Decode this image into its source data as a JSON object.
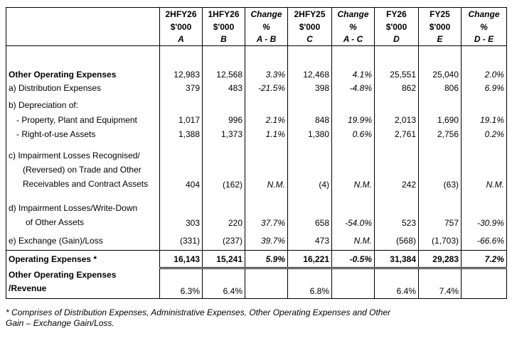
{
  "columns": [
    {
      "period": "2HFY26",
      "unit": "$'000",
      "code": "A",
      "italic_header": false
    },
    {
      "period": "1HFY26",
      "unit": "$'000",
      "code": "B",
      "italic_header": false
    },
    {
      "period": "Change",
      "unit": "%",
      "code": "A - B",
      "italic_header": true
    },
    {
      "period": "2HFY25",
      "unit": "$'000",
      "code": "C",
      "italic_header": false
    },
    {
      "period": "Change",
      "unit": "%",
      "code": "A - C",
      "italic_header": true
    },
    {
      "period": "FY26",
      "unit": "$'000",
      "code": "D",
      "italic_header": false
    },
    {
      "period": "FY25",
      "unit": "$'000",
      "code": "E",
      "italic_header": false
    },
    {
      "period": "Change",
      "unit": "%",
      "code": "D - E",
      "italic_header": true
    }
  ],
  "rows": {
    "other_opex": {
      "label": "Other Operating Expenses",
      "values": [
        "12,983",
        "12,568",
        "3.3%",
        "12,468",
        "4.1%",
        "25,551",
        "25,040",
        "2.0%"
      ]
    },
    "distribution": {
      "label": "a) Distribution Expenses",
      "values": [
        "379",
        "483",
        "-21.5%",
        "398",
        "-4.8%",
        "862",
        "806",
        "6.9%"
      ]
    },
    "depreciation_header": {
      "label": "b) Depreciation of:"
    },
    "ppe": {
      "label": "- Property, Plant and Equipment",
      "values": [
        "1,017",
        "996",
        "2.1%",
        "848",
        "19.9%",
        "2,013",
        "1,690",
        "19.1%"
      ]
    },
    "rou": {
      "label": "- Right-of-use Assets",
      "values": [
        "1,388",
        "1,373",
        "1.1%",
        "1,380",
        "0.6%",
        "2,761",
        "2,756",
        "0.2%"
      ]
    },
    "impairment_recv": {
      "label_lines": [
        "c) Impairment Losses Recognised/",
        "(Reversed) on Trade and Other",
        "Receivables and Contract Assets"
      ],
      "values": [
        "404",
        "(162)",
        "N.M.",
        "(4)",
        "N.M.",
        "242",
        "(63)",
        "N.M."
      ]
    },
    "impairment_other": {
      "label_lines": [
        "d) Impairment Losses/Write-Down",
        "of Other Assets"
      ],
      "values": [
        "303",
        "220",
        "37.7%",
        "658",
        "-54.0%",
        "523",
        "757",
        "-30.9%"
      ]
    },
    "fx": {
      "label": "e) Exchange (Gain)/Loss",
      "values": [
        "(331)",
        "(237)",
        "39.7%",
        "473",
        "N.M.",
        "(568)",
        "(1,703)",
        "-66.6%"
      ]
    },
    "operating_expenses": {
      "label": "Operating Expenses *",
      "values": [
        "16,143",
        "15,241",
        "5.9%",
        "16,221",
        "-0.5%",
        "31,384",
        "29,283",
        "7.2%"
      ]
    },
    "ratio": {
      "label_lines": [
        "Other Operating Expenses",
        "/Revenue"
      ],
      "values": [
        "6.3%",
        "6.4%",
        "",
        "6.8%",
        "",
        "6.4%",
        "7.4%",
        ""
      ]
    }
  },
  "footnote": {
    "line1": "* Comprises of Distribution Expenses, Administrative Expenses, Other Operating Expenses and Other",
    "line2": "Gain – Exchange Gain/Loss."
  }
}
